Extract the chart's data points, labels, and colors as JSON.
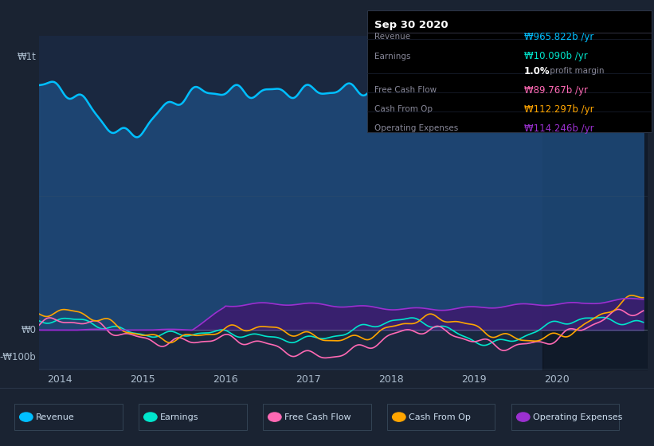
{
  "bg_color": "#1a2332",
  "plot_bg_color": "#1a2840",
  "ylabel_1t": "₩1t",
  "ylabel_0": "₩0",
  "ylabel_neg100b": "-₩100b",
  "revenue_color": "#00bfff",
  "earnings_color": "#00e5cc",
  "fcf_color": "#ff69b4",
  "cashfromop_color": "#ffa500",
  "opex_color": "#9b30d0",
  "fill_revenue_color": "#1e4a7a",
  "fill_opex_color": "#3d1a6e",
  "tooltip_bg": "#000000",
  "tooltip_title": "Sep 30 2020",
  "tooltip_revenue_label": "Revenue",
  "tooltip_revenue_val": "₩965.822b /yr",
  "tooltip_earnings_label": "Earnings",
  "tooltip_earnings_val": "₩10.090b /yr",
  "tooltip_margin": "1.0% profit margin",
  "tooltip_fcf_label": "Free Cash Flow",
  "tooltip_fcf_val": "₩89.767b /yr",
  "tooltip_cashop_label": "Cash From Op",
  "tooltip_cashop_val": "₩112.297b /yr",
  "tooltip_opex_label": "Operating Expenses",
  "tooltip_opex_val": "₩114.246b /yr",
  "legend_labels": [
    "Revenue",
    "Earnings",
    "Free Cash Flow",
    "Cash From Op",
    "Operating Expenses"
  ],
  "dark_shade_start": 2019.83,
  "xlim_left": 2013.75,
  "xlim_right": 2021.1,
  "ylim_bottom": -150,
  "ylim_top": 1100
}
